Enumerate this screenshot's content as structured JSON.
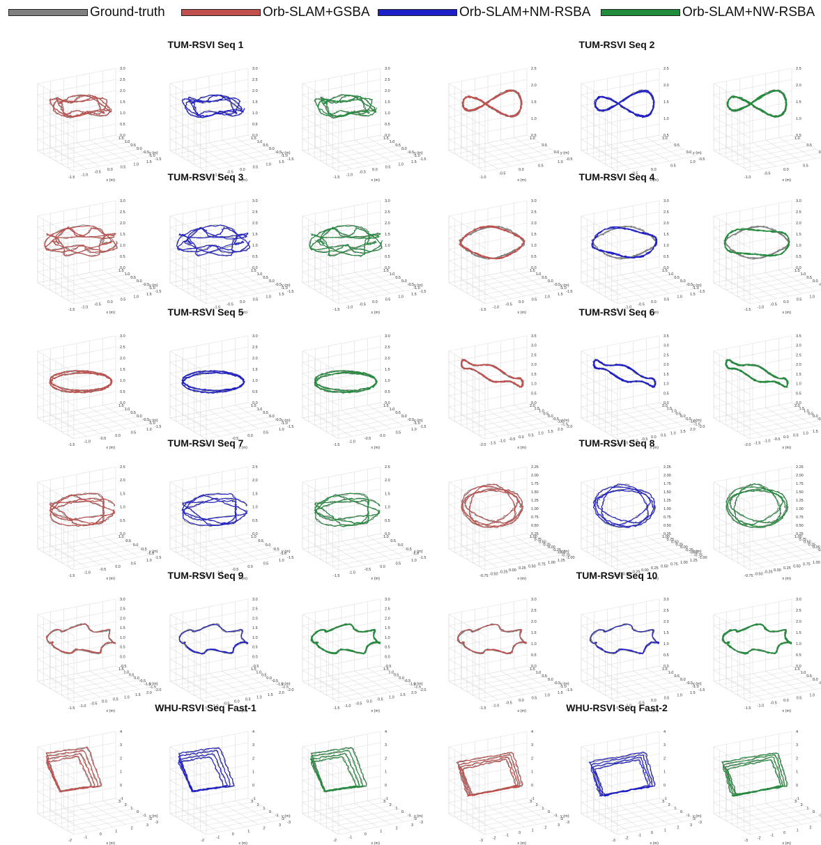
{
  "chart_data": {
    "type": "line",
    "legend": [
      {
        "name": "Ground-truth",
        "color": "#808080"
      },
      {
        "name": "Orb-SLAM+GSBA",
        "color": "#c0504d"
      },
      {
        "name": "Orb-SLAM+NM-RSBA",
        "color": "#1f1fc8"
      },
      {
        "name": "Orb-SLAM+NW-RSBA",
        "color": "#228b3c"
      }
    ],
    "axis_labels": {
      "x": "x (m)",
      "y": "y (m)"
    },
    "methods": [
      "Orb-SLAM+GSBA",
      "Orb-SLAM+NM-RSBA",
      "Orb-SLAM+NW-RSBA"
    ],
    "groups": [
      {
        "title": "TUM-RSVI Seq 1",
        "shape": "blob",
        "xticks": [
          "-1.5",
          "-1.0",
          "-0.5",
          "0.0",
          "0.5",
          "1.0",
          "1.5"
        ],
        "yticks": [
          "1.5",
          "1.0",
          "0.5",
          "0.0",
          "-0.5",
          "-1.0",
          "-1.5"
        ],
        "zticks": [
          "3.0",
          "2.5",
          "2.0",
          "1.5",
          "1.0",
          "0.5",
          "0.0"
        ]
      },
      {
        "title": "TUM-RSVI Seq 2",
        "shape": "eight",
        "xticks": [
          "-1.0",
          "-0.5",
          "0.0",
          "0.5",
          "1.0"
        ],
        "yticks": [
          "1.0",
          "0.5",
          "0.0",
          "-0.5"
        ],
        "zticks": [
          "2.5",
          "2.0",
          "1.5",
          "1.0",
          "0.5"
        ]
      },
      {
        "title": "TUM-RSVI Seq 3",
        "shape": "messy",
        "xticks": [
          "-1.5",
          "-1.0",
          "-0.5",
          "0.0",
          "0.5",
          "1.0",
          "1.5"
        ],
        "yticks": [
          "1.5",
          "1.0",
          "0.5",
          "0.0",
          "-0.5",
          "-1.0",
          "-1.5"
        ],
        "zticks": [
          "3.0",
          "2.5",
          "2.0",
          "1.5",
          "1.0",
          "0.5",
          "0.0"
        ]
      },
      {
        "title": "TUM-RSVI Seq 4",
        "shape": "ellipse",
        "xticks": [
          "-1.5",
          "-1.0",
          "-0.5",
          "0.0",
          "0.5",
          "1.0",
          "1.5"
        ],
        "yticks": [
          "1.5",
          "1.0",
          "0.5",
          "0.0",
          "-0.5",
          "-1.0",
          "-1.5"
        ],
        "zticks": [
          "3.0",
          "2.5",
          "2.0",
          "1.5",
          "1.0",
          "0.5",
          "0.0"
        ]
      },
      {
        "title": "TUM-RSVI Seq 5",
        "shape": "ellipse-loop",
        "xticks": [
          "-1.5",
          "-1.0",
          "-0.5",
          "0.0",
          "0.5",
          "1.0"
        ],
        "yticks": [
          "1.5",
          "1.0",
          "0.5",
          "0.0",
          "-0.5",
          "-1.0",
          "-1.5"
        ],
        "zticks": [
          "3.0",
          "2.5",
          "2.0",
          "1.5",
          "1.0",
          "0.5",
          "0.0"
        ]
      },
      {
        "title": "TUM-RSVI Seq 6",
        "shape": "flat",
        "xticks": [
          "-2.0",
          "-1.5",
          "-1.0",
          "-0.5",
          "0.0",
          "0.5",
          "1.0",
          "1.5",
          "2.0"
        ],
        "yticks": [
          "2.0",
          "1.5",
          "1.0",
          "0.5",
          "0.0",
          "-0.5",
          "-1.0",
          "-1.5",
          "-2.0"
        ],
        "zticks": [
          "3.5",
          "3.0",
          "2.5",
          "2.0",
          "1.5",
          "1.0",
          "0.5",
          "0.0"
        ]
      },
      {
        "title": "TUM-RSVI Seq 7",
        "shape": "loops",
        "xticks": [
          "-1.5",
          "-1.0",
          "-0.5",
          "0.0",
          "0.5",
          "1.0"
        ],
        "yticks": [
          "1.0",
          "0.5",
          "0.0",
          "-0.5",
          "-1.0",
          "-1.5"
        ],
        "zticks": [
          "2.5",
          "2.0",
          "1.5",
          "1.0",
          "0.5",
          "0.0"
        ]
      },
      {
        "title": "TUM-RSVI Seq 8",
        "shape": "circles",
        "xticks": [
          "-0.75",
          "-0.50",
          "-0.25",
          "0.00",
          "0.25",
          "0.50",
          "0.75",
          "1.00",
          "1.25"
        ],
        "yticks": [
          "1.00",
          "0.75",
          "0.50",
          "0.25",
          "0.00",
          "-0.25",
          "-0.50",
          "-0.75",
          "-1.00"
        ],
        "zticks": [
          "2.25",
          "2.00",
          "1.75",
          "1.50",
          "1.25",
          "1.00",
          "0.75",
          "0.50",
          "0.25"
        ]
      },
      {
        "title": "TUM-RSVI Seq 9",
        "shape": "ring-partial",
        "xticks": [
          "-1.5",
          "-1.0",
          "-0.5",
          "0.0",
          "0.5",
          "1.0",
          "1.5",
          "2.0"
        ],
        "yticks": [
          "1.5",
          "1.0",
          "0.5",
          "0.0",
          "-0.5",
          "-1.0",
          "-1.5",
          "-2.0"
        ],
        "zticks": [
          "3.0",
          "2.5",
          "2.0",
          "1.5",
          "1.0",
          "0.5",
          "0.0",
          "-0.5"
        ]
      },
      {
        "title": "TUM-RSVI Seq 10",
        "shape": "ring-partial",
        "xticks": [
          "-1.5",
          "-1.0",
          "-0.5",
          "0.0",
          "0.5",
          "1.0",
          "1.5"
        ],
        "yticks": [
          "1.5",
          "1.0",
          "0.5",
          "0.0",
          "-0.5",
          "-1.0",
          "-1.5"
        ],
        "zticks": [
          "3.0",
          "2.5",
          "2.0",
          "1.5",
          "1.0",
          "0.5",
          "0.0"
        ]
      },
      {
        "title": "WHU-RSVI Seq Fast-1",
        "shape": "tilted-rect",
        "xticks": [
          "-2",
          "-1",
          "0",
          "1",
          "2",
          "3"
        ],
        "yticks": [
          "3",
          "2",
          "1",
          "0",
          "-1",
          "-2",
          "-3"
        ],
        "zticks": [
          "4",
          "3",
          "2",
          "1",
          "0",
          "-1"
        ]
      },
      {
        "title": "WHU-RSVI Seq Fast-2",
        "shape": "rect",
        "xticks": [
          "-3",
          "-2",
          "-1",
          "0",
          "1",
          "2",
          "3"
        ],
        "yticks": [
          "3",
          "2",
          "1",
          "0",
          "-1",
          "-2",
          "-3"
        ],
        "zticks": [
          "4",
          "3",
          "2",
          "1",
          "0",
          "-1"
        ]
      }
    ]
  }
}
